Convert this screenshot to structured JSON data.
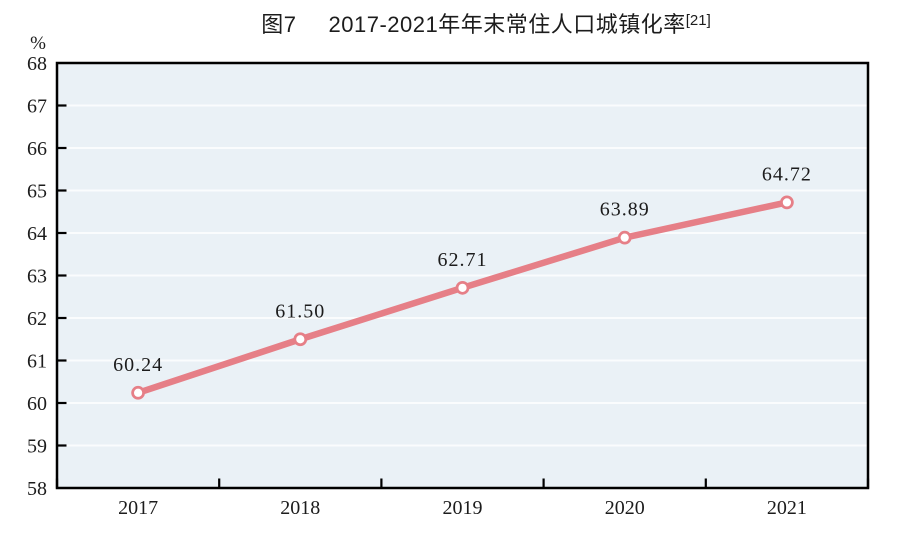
{
  "title": {
    "figure_label": "图7",
    "text": "2017-2021年年末常住人口城镇化率",
    "footnote_ref": "[21]"
  },
  "chart_data": {
    "type": "line",
    "title": "图7 2017-2021年年末常住人口城镇化率[21]",
    "categories": [
      "2017",
      "2018",
      "2019",
      "2020",
      "2021"
    ],
    "series": [
      {
        "name": "年末常住人口城镇化率",
        "values": [
          60.24,
          61.5,
          62.71,
          63.89,
          64.72
        ]
      }
    ],
    "data_labels": [
      "60.24",
      "61.50",
      "62.71",
      "63.89",
      "64.72"
    ],
    "unit_label": "%",
    "xlabel": "",
    "ylabel": "%",
    "ylim": [
      58,
      68
    ],
    "ytick_step": 1,
    "yticks": [
      58,
      59,
      60,
      61,
      62,
      63,
      64,
      65,
      66,
      67,
      68
    ],
    "grid": "horizontal",
    "legend": "none",
    "marker": "open-circle",
    "colors": {
      "line": "#e67f87",
      "marker_fill": "#ffffff",
      "plot_background": "#eaf1f6",
      "gridline": "#fafcfd",
      "axis": "#000000",
      "text": "#1c1c1c",
      "page_background": "#ffffff"
    }
  }
}
